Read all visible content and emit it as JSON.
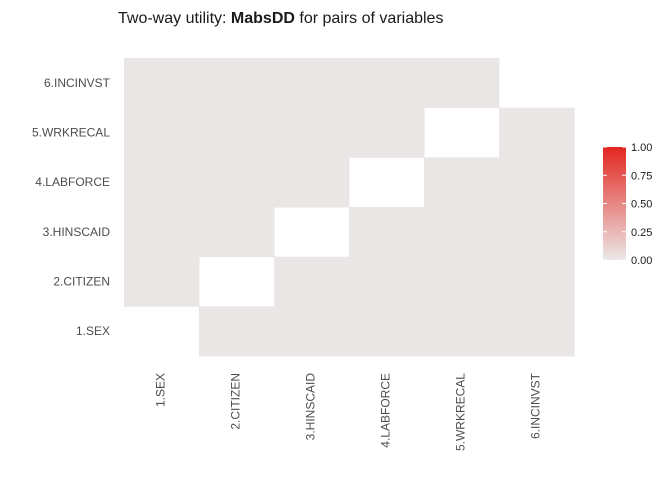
{
  "chart_data": {
    "type": "heatmap",
    "title_prefix": "Two-way utility: ",
    "title_bold": "MabsDD",
    "title_suffix": " for pairs of variables",
    "xlabel": "",
    "ylabel": "",
    "x_categories": [
      "1.SEX",
      "2.CITIZEN",
      "3.HINSCAID",
      "4.LABFORCE",
      "5.WRKRECAL",
      "6.INCINVST"
    ],
    "y_categories": [
      "1.SEX",
      "2.CITIZEN",
      "3.HINSCAID",
      "4.LABFORCE",
      "5.WRKRECAL",
      "6.INCINVST"
    ],
    "matrix": [
      [
        null,
        0.01,
        0.01,
        0.01,
        0.01,
        0.01
      ],
      [
        0.01,
        null,
        0.01,
        0.01,
        0.01,
        0.01
      ],
      [
        0.01,
        0.01,
        null,
        0.01,
        0.01,
        0.01
      ],
      [
        0.01,
        0.01,
        0.01,
        null,
        0.01,
        0.01
      ],
      [
        0.01,
        0.01,
        0.01,
        0.01,
        null,
        0.01
      ],
      [
        0.01,
        0.01,
        0.01,
        0.01,
        0.01,
        null
      ]
    ],
    "matrix_note_rows": "matrix[i][j]: i = x category index, j = y category index",
    "color_scale": {
      "low": "#ebe8e8",
      "high": "#e3261f",
      "limits": [
        0,
        1
      ]
    },
    "legend": {
      "position": "right",
      "ticks": [
        "1.00",
        "0.75",
        "0.50",
        "0.25",
        "0.00"
      ],
      "tick_values": [
        1,
        0.75,
        0.5,
        0.25,
        0
      ]
    },
    "grid": false
  }
}
